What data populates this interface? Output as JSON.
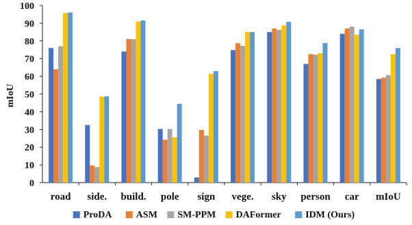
{
  "chart_data": {
    "type": "bar",
    "title": "",
    "xlabel": "",
    "ylabel": "mIoU",
    "ylim": [
      0,
      100
    ],
    "yticks": [
      0,
      10,
      20,
      30,
      40,
      50,
      60,
      70,
      80,
      90,
      100
    ],
    "grid": false,
    "legend_position": "bottom",
    "categories": [
      "road",
      "side.",
      "build.",
      "pole",
      "sign",
      "vege.",
      "sky",
      "person",
      "car",
      "mIoU"
    ],
    "series": [
      {
        "name": "ProDA",
        "color": "#4472c4",
        "values": [
          76.0,
          32.5,
          74.0,
          30.3,
          2.9,
          74.8,
          85.0,
          67.0,
          84.0,
          58.5
        ]
      },
      {
        "name": "ASM",
        "color": "#ed7d31",
        "values": [
          64.0,
          9.7,
          81.0,
          24.2,
          29.7,
          78.7,
          87.0,
          72.5,
          87.0,
          59.2
        ]
      },
      {
        "name": "SM-PPM",
        "color": "#a5a5a5",
        "values": [
          77.0,
          8.7,
          81.0,
          30.3,
          26.5,
          77.2,
          86.2,
          72.2,
          88.0,
          60.7
        ]
      },
      {
        "name": "DAFormer",
        "color": "#ffc000",
        "values": [
          95.7,
          48.5,
          91.0,
          25.6,
          61.4,
          85.0,
          88.7,
          73.0,
          83.5,
          72.5
        ]
      },
      {
        "name": "IDM (Ours)",
        "color": "#5b9bd5",
        "values": [
          96.0,
          48.7,
          91.5,
          44.5,
          63.0,
          85.0,
          90.8,
          78.8,
          86.5,
          76.0
        ]
      }
    ]
  }
}
